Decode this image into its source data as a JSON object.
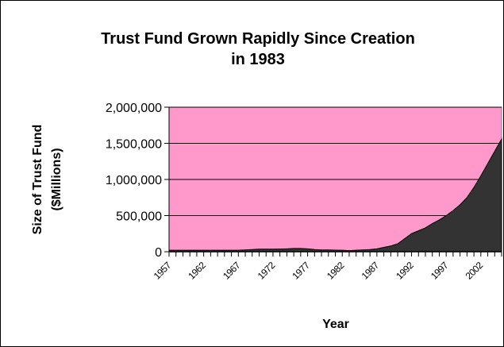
{
  "chart_data": {
    "type": "area",
    "title_lines": [
      "Trust Fund Grown Rapidly Since Creation",
      "in 1983"
    ],
    "xlabel": "Year",
    "ylabel_lines": [
      "Size of Trust Fund",
      "($Millions)"
    ],
    "ylim": [
      0,
      2000000
    ],
    "yticks": [
      0,
      500000,
      1000000,
      1500000,
      2000000
    ],
    "ytick_labels": [
      "0",
      "500,000",
      "1,000,000",
      "1,500,000",
      "2,000,000"
    ],
    "xticks": [
      1957,
      1962,
      1967,
      1972,
      1977,
      1982,
      1987,
      1992,
      1997,
      2002
    ],
    "xlim": [
      1957,
      2005
    ],
    "grid": true,
    "colors": {
      "plot_background": "#FF99CC",
      "area_fill": "#333333"
    },
    "series": [
      {
        "x": [
          1957,
          1958,
          1959,
          1960,
          1961,
          1962,
          1963,
          1964,
          1965,
          1966,
          1967,
          1968,
          1969,
          1970,
          1971,
          1972,
          1973,
          1974,
          1975,
          1976,
          1977,
          1978,
          1979,
          1980,
          1981,
          1982,
          1983,
          1984,
          1985,
          1986,
          1987,
          1988,
          1989,
          1990,
          1991,
          1992,
          1993,
          1994,
          1995,
          1996,
          1997,
          1998,
          1999,
          2000,
          2001,
          2002,
          2003,
          2004,
          2005
        ],
        "values": [
          20000,
          20000,
          20000,
          20000,
          20000,
          20000,
          20000,
          20000,
          20000,
          20000,
          20000,
          25000,
          30000,
          35000,
          35000,
          35000,
          37000,
          40000,
          45000,
          45000,
          40000,
          30000,
          25000,
          25000,
          22000,
          20000,
          15000,
          20000,
          25000,
          30000,
          40000,
          60000,
          80000,
          110000,
          180000,
          250000,
          290000,
          330000,
          390000,
          440000,
          500000,
          570000,
          650000,
          750000,
          890000,
          1050000,
          1220000,
          1390000,
          1560000
        ]
      }
    ]
  }
}
